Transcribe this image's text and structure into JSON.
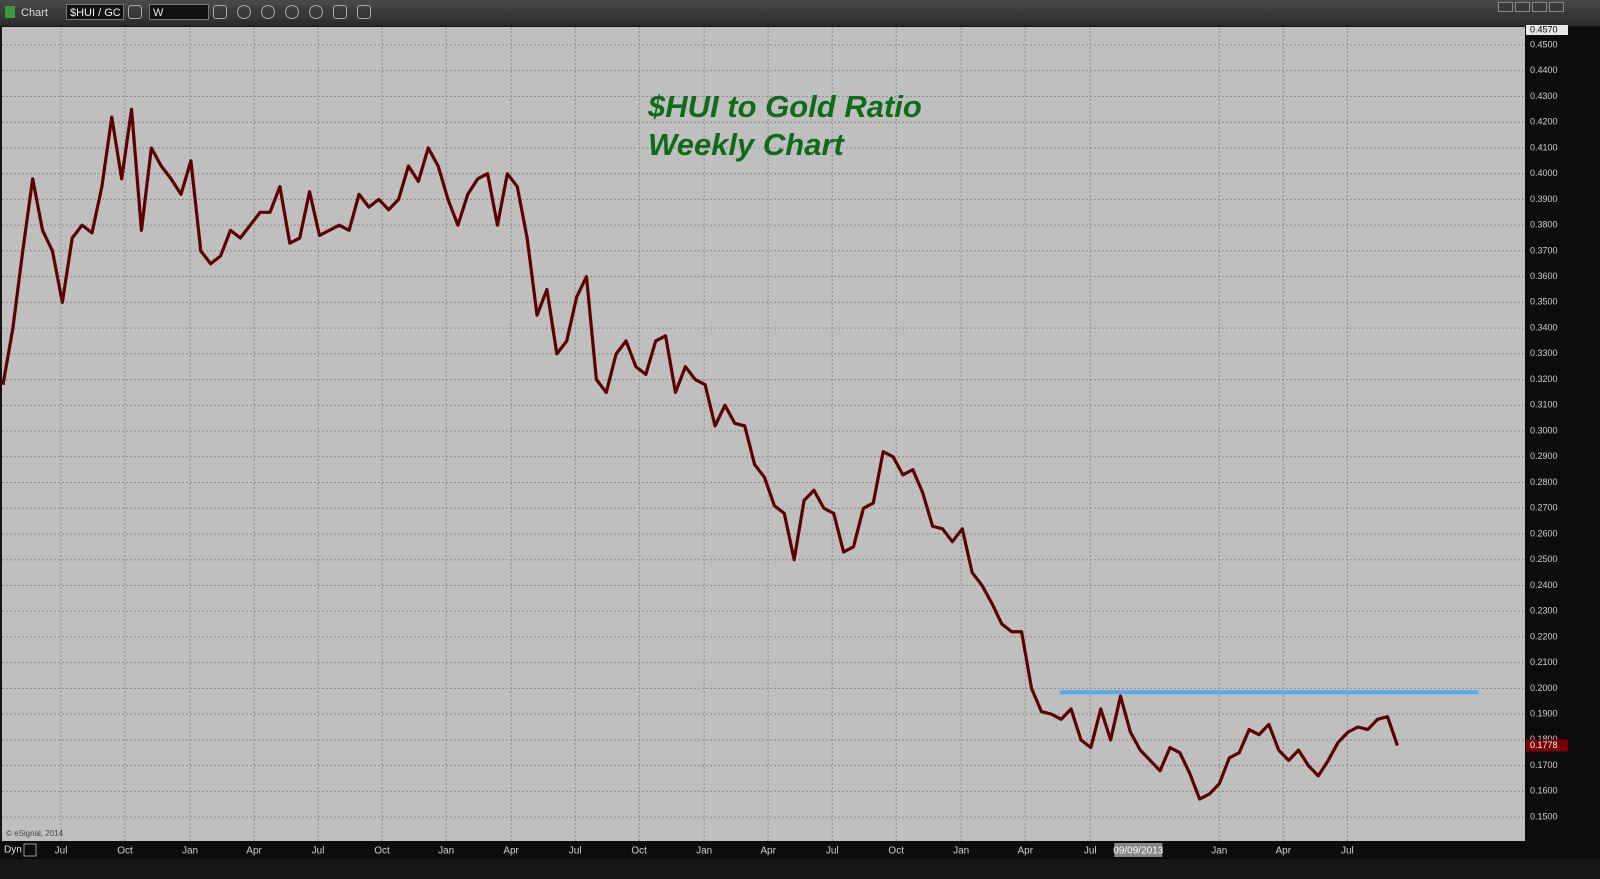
{
  "toolbar": {
    "app": "Chart",
    "symbol": "$HUI / GC",
    "interval": "W"
  },
  "footer": {
    "copyright": "© eSignal, 2014",
    "mode": "Dyn"
  },
  "chart_data": {
    "type": "line",
    "title": "$HUI to Gold Ratio",
    "subtitle": "Weekly Chart",
    "color": "#5c0000",
    "grid": true,
    "xlim": [
      -0.1,
      153.9
    ],
    "ylim": [
      0.1407,
      0.457
    ],
    "axis_max_label": {
      "value": 0.457,
      "label": "0.4570"
    },
    "last_label": {
      "value": 0.1778,
      "label": "0.1778"
    },
    "cursor_label": {
      "value": 114.8,
      "label": "09/09/2013"
    },
    "annotations": [
      {
        "type": "hline",
        "y": 0.1985,
        "x": [
          106.9,
          149.2
        ],
        "color": "#5aa8e6"
      }
    ],
    "xticks": [
      {
        "value": 5.87,
        "label": "Jul"
      },
      {
        "value": 12.34,
        "label": "Oct"
      },
      {
        "value": 18.91,
        "label": "Jan"
      },
      {
        "value": 25.39,
        "label": "Apr"
      },
      {
        "value": 31.86,
        "label": "Jul"
      },
      {
        "value": 38.33,
        "label": "Oct"
      },
      {
        "value": 44.81,
        "label": "Jan"
      },
      {
        "value": 51.38,
        "label": "Apr"
      },
      {
        "value": 57.85,
        "label": "Jul"
      },
      {
        "value": 64.33,
        "label": "Oct"
      },
      {
        "value": 70.9,
        "label": "Jan"
      },
      {
        "value": 77.37,
        "label": "Apr"
      },
      {
        "value": 83.85,
        "label": "Jul"
      },
      {
        "value": 90.32,
        "label": "Oct"
      },
      {
        "value": 96.89,
        "label": "Jan"
      },
      {
        "value": 103.37,
        "label": "Apr"
      },
      {
        "value": 109.94,
        "label": "Jul"
      },
      {
        "value": 122.99,
        "label": "Jan"
      },
      {
        "value": 129.46,
        "label": "Apr"
      },
      {
        "value": 135.94,
        "label": "Jul"
      }
    ],
    "yticks": [
      {
        "value": 0.15,
        "label": "0.1500"
      },
      {
        "value": 0.16,
        "label": "0.1600"
      },
      {
        "value": 0.17,
        "label": "0.1700"
      },
      {
        "value": 0.18,
        "label": "0.1800"
      },
      {
        "value": 0.19,
        "label": "0.1900"
      },
      {
        "value": 0.2,
        "label": "0.2000"
      },
      {
        "value": 0.21,
        "label": "0.2100"
      },
      {
        "value": 0.22,
        "label": "0.2200"
      },
      {
        "value": 0.23,
        "label": "0.2300"
      },
      {
        "value": 0.24,
        "label": "0.2400"
      },
      {
        "value": 0.25,
        "label": "0.2500"
      },
      {
        "value": 0.26,
        "label": "0.2600"
      },
      {
        "value": 0.27,
        "label": "0.2700"
      },
      {
        "value": 0.28,
        "label": "0.2800"
      },
      {
        "value": 0.29,
        "label": "0.2900"
      },
      {
        "value": 0.3,
        "label": "0.3000"
      },
      {
        "value": 0.31,
        "label": "0.3100"
      },
      {
        "value": 0.32,
        "label": "0.3200"
      },
      {
        "value": 0.33,
        "label": "0.3300"
      },
      {
        "value": 0.34,
        "label": "0.3400"
      },
      {
        "value": 0.35,
        "label": "0.3500"
      },
      {
        "value": 0.36,
        "label": "0.3600"
      },
      {
        "value": 0.37,
        "label": "0.3700"
      },
      {
        "value": 0.38,
        "label": "0.3800"
      },
      {
        "value": 0.39,
        "label": "0.3900"
      },
      {
        "value": 0.4,
        "label": "0.4000"
      },
      {
        "value": 0.41,
        "label": "0.4100"
      },
      {
        "value": 0.42,
        "label": "0.4200"
      },
      {
        "value": 0.43,
        "label": "0.4300"
      },
      {
        "value": 0.44,
        "label": "0.4400"
      },
      {
        "value": 0.45,
        "label": "0.4500"
      }
    ],
    "values": [
      0.318,
      0.34,
      0.37,
      0.398,
      0.378,
      0.37,
      0.35,
      0.375,
      0.38,
      0.377,
      0.395,
      0.422,
      0.398,
      0.425,
      0.378,
      0.41,
      0.403,
      0.398,
      0.392,
      0.405,
      0.37,
      0.365,
      0.368,
      0.378,
      0.375,
      0.38,
      0.385,
      0.385,
      0.395,
      0.373,
      0.375,
      0.393,
      0.376,
      0.378,
      0.38,
      0.378,
      0.392,
      0.387,
      0.39,
      0.386,
      0.39,
      0.403,
      0.397,
      0.41,
      0.403,
      0.39,
      0.38,
      0.392,
      0.398,
      0.4,
      0.38,
      0.4,
      0.395,
      0.375,
      0.345,
      0.355,
      0.33,
      0.335,
      0.352,
      0.36,
      0.32,
      0.315,
      0.33,
      0.335,
      0.325,
      0.322,
      0.335,
      0.337,
      0.315,
      0.325,
      0.32,
      0.318,
      0.302,
      0.31,
      0.303,
      0.302,
      0.287,
      0.282,
      0.271,
      0.268,
      0.25,
      0.273,
      0.277,
      0.27,
      0.268,
      0.253,
      0.255,
      0.27,
      0.272,
      0.292,
      0.29,
      0.283,
      0.285,
      0.276,
      0.263,
      0.262,
      0.257,
      0.262,
      0.245,
      0.24,
      0.233,
      0.225,
      0.222,
      0.222,
      0.2,
      0.191,
      0.19,
      0.188,
      0.192,
      0.18,
      0.177,
      0.192,
      0.18,
      0.197,
      0.183,
      0.176,
      0.172,
      0.168,
      0.177,
      0.175,
      0.167,
      0.157,
      0.159,
      0.163,
      0.173,
      0.175,
      0.184,
      0.182,
      0.186,
      0.176,
      0.172,
      0.176,
      0.17,
      0.166,
      0.172,
      0.179,
      0.183,
      0.185,
      0.184,
      0.188,
      0.189,
      0.1778
    ]
  }
}
